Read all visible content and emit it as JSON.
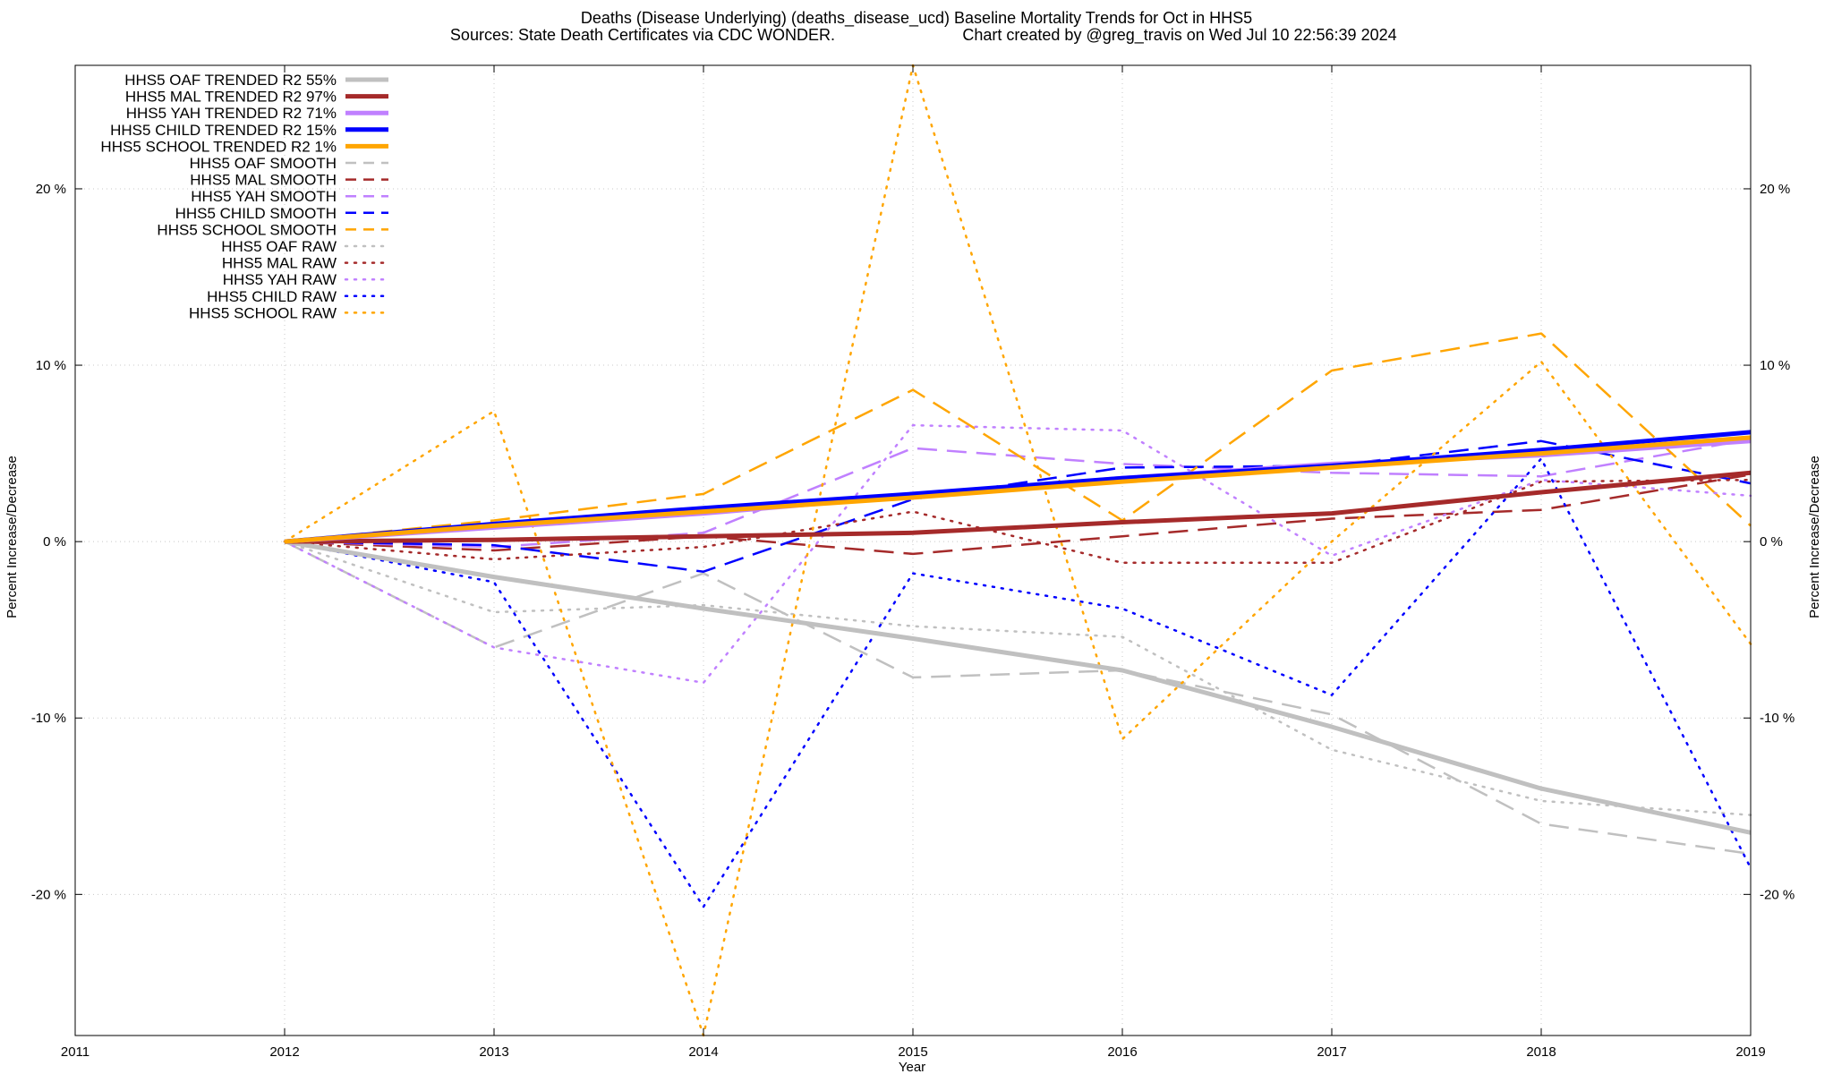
{
  "chart_data": {
    "type": "line",
    "title_line1": "Deaths (Disease Underlying) (deaths_disease_ucd)  Baseline Mortality Trends for Oct in HHS5",
    "title_line2_left": "Sources: State Death Certificates via CDC WONDER.",
    "title_line2_right": "Chart created by @greg_travis on Wed Jul 10 22:56:39 2024",
    "xlabel": "Year",
    "ylabel": "Percent Increase/Decrease",
    "xlim": [
      2011,
      2019
    ],
    "ylim": [
      -28,
      27
    ],
    "x_ticks": [
      "2011",
      "2012",
      "2013",
      "2014",
      "2015",
      "2016",
      "2017",
      "2018",
      "2019"
    ],
    "y_ticks": [
      {
        "value": -20,
        "label": "-20 %"
      },
      {
        "value": -10,
        "label": "-10 %"
      },
      {
        "value": 0,
        "label": "0 %"
      },
      {
        "value": 10,
        "label": "10 %"
      },
      {
        "value": 20,
        "label": "20 %"
      }
    ],
    "grid": true,
    "legend_position": "top-left",
    "x": [
      2012,
      2013,
      2014,
      2015,
      2016,
      2017,
      2018,
      2019
    ],
    "series": [
      {
        "name": "HHS5 OAF TRENDED R2  55%",
        "style": "solid",
        "color": "#c0c0c0",
        "values": [
          0,
          -2.0,
          -3.8,
          -5.5,
          -7.3,
          -10.5,
          -14.0,
          -16.5
        ]
      },
      {
        "name": "HHS5 MAL TRENDED R2  97%",
        "style": "solid",
        "color": "#a52a2a",
        "values": [
          0,
          0.1,
          0.3,
          0.5,
          1.1,
          1.6,
          2.8,
          3.9
        ]
      },
      {
        "name": "HHS5 YAH TRENDED R2  71%",
        "style": "solid",
        "color": "#c080ff",
        "values": [
          0,
          0.8,
          1.6,
          2.6,
          3.6,
          4.4,
          4.9,
          5.7
        ]
      },
      {
        "name": "HHS5 CHILD TRENDED R2  15%",
        "style": "solid",
        "color": "#0000ff",
        "values": [
          0,
          1.0,
          1.9,
          2.7,
          3.6,
          4.3,
          5.2,
          6.2
        ]
      },
      {
        "name": "HHS5 SCHOOL TRENDED R2   1%",
        "style": "solid",
        "color": "#ffa500",
        "values": [
          0,
          0.9,
          1.7,
          2.5,
          3.4,
          4.2,
          5.0,
          5.9
        ]
      },
      {
        "name": "HHS5 OAF SMOOTH",
        "style": "dashed",
        "color": "#c0c0c0",
        "values": [
          0,
          -6.0,
          -1.8,
          -7.7,
          -7.3,
          -9.8,
          -16.0,
          -17.7
        ]
      },
      {
        "name": "HHS5 MAL SMOOTH",
        "style": "dashed",
        "color": "#a52a2a",
        "values": [
          0,
          -0.5,
          0.3,
          -0.7,
          0.3,
          1.3,
          1.8,
          3.8
        ]
      },
      {
        "name": "HHS5 YAH SMOOTH",
        "style": "dashed",
        "color": "#c080ff",
        "values": [
          0,
          -0.3,
          0.5,
          5.3,
          4.4,
          3.9,
          3.7,
          5.8
        ]
      },
      {
        "name": "HHS5 CHILD SMOOTH",
        "style": "dashed",
        "color": "#0000ff",
        "values": [
          0,
          -0.2,
          -1.7,
          2.4,
          4.2,
          4.3,
          5.7,
          3.3
        ]
      },
      {
        "name": "HHS5 SCHOOL SMOOTH",
        "style": "dashed",
        "color": "#ffa500",
        "values": [
          0,
          1.2,
          2.7,
          8.6,
          1.2,
          9.7,
          11.8,
          0.9
        ]
      },
      {
        "name": "HHS5 OAF RAW",
        "style": "dotted",
        "color": "#c0c0c0",
        "values": [
          0,
          -4.0,
          -3.6,
          -4.8,
          -5.4,
          -11.8,
          -14.7,
          -15.5
        ]
      },
      {
        "name": "HHS5 MAL RAW",
        "style": "dotted",
        "color": "#a52a2a",
        "values": [
          0,
          -1.0,
          -0.3,
          1.7,
          -1.2,
          -1.2,
          3.4,
          3.5
        ]
      },
      {
        "name": "HHS5 YAH RAW",
        "style": "dotted",
        "color": "#c080ff",
        "values": [
          0,
          -6.0,
          -8.0,
          6.6,
          6.3,
          -0.8,
          3.5,
          2.6
        ]
      },
      {
        "name": "HHS5 CHILD RAW",
        "style": "dotted",
        "color": "#0000ff",
        "values": [
          0,
          -2.3,
          -20.7,
          -1.8,
          -3.8,
          -8.7,
          4.7,
          -18.5
        ]
      },
      {
        "name": "HHS5 SCHOOL RAW",
        "style": "dotted",
        "color": "#ffa500",
        "values": [
          0,
          7.4,
          -28.0,
          27.0,
          -11.2,
          0.0,
          10.2,
          -5.8
        ]
      }
    ]
  }
}
